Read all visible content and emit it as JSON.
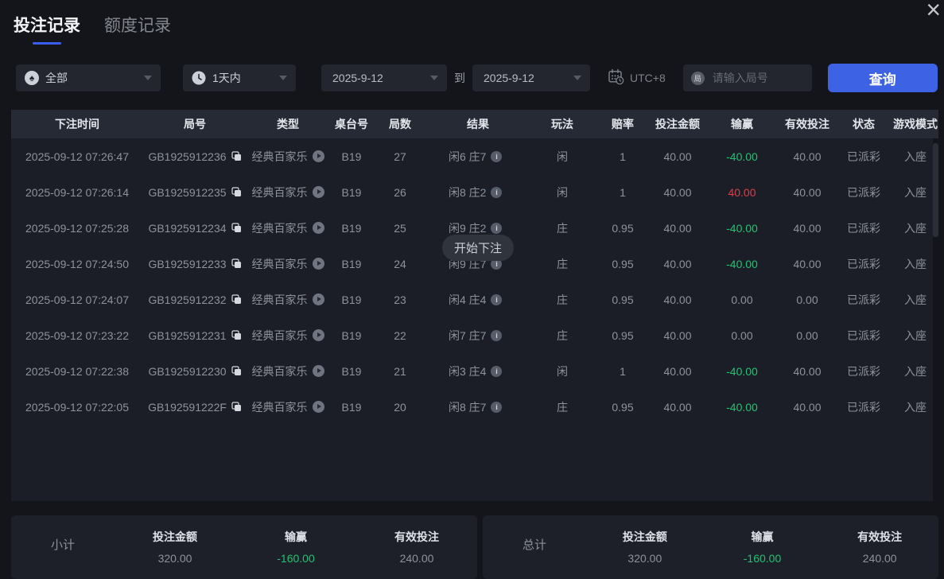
{
  "tabs": [
    {
      "label": "投注记录",
      "active": true
    },
    {
      "label": "额度记录",
      "active": false
    }
  ],
  "close_glyph": "×",
  "filters": {
    "game_select": {
      "value": "全部",
      "icon": "spade"
    },
    "time_select": {
      "value": "1天内",
      "icon": "clock"
    },
    "date_from": "2025-9-12",
    "to_label": "到",
    "date_to": "2025-9-12",
    "timezone_label": "UTC+8",
    "round_icon_text": "局",
    "round_input_placeholder": "请输入局号",
    "query_button": "查询"
  },
  "toast": "开始下注",
  "table": {
    "headers": [
      "下注时间",
      "局号",
      "类型",
      "桌台号",
      "局数",
      "结果",
      "玩法",
      "赔率",
      "投注金额",
      "输赢",
      "有效投注",
      "状态",
      "游戏模式"
    ],
    "rows": [
      {
        "time": "2025-09-12 07:26:47",
        "round": "GB1925912236",
        "type": "经典百家乐",
        "table_no": "B19",
        "game_no": "27",
        "result": "闲6 庄7",
        "play": "闲",
        "odds": "1",
        "bet": "40.00",
        "winloss": "-40.00",
        "winloss_color": "green",
        "valid": "40.00",
        "status": "已派彩",
        "mode": "入座"
      },
      {
        "time": "2025-09-12 07:26:14",
        "round": "GB1925912235",
        "type": "经典百家乐",
        "table_no": "B19",
        "game_no": "26",
        "result": "闲8 庄2",
        "play": "闲",
        "odds": "1",
        "bet": "40.00",
        "winloss": "40.00",
        "winloss_color": "red",
        "valid": "40.00",
        "status": "已派彩",
        "mode": "入座"
      },
      {
        "time": "2025-09-12 07:25:28",
        "round": "GB1925912234",
        "type": "经典百家乐",
        "table_no": "B19",
        "game_no": "25",
        "result": "闲9 庄2",
        "play": "庄",
        "odds": "0.95",
        "bet": "40.00",
        "winloss": "-40.00",
        "winloss_color": "green",
        "valid": "40.00",
        "status": "已派彩",
        "mode": "入座"
      },
      {
        "time": "2025-09-12 07:24:50",
        "round": "GB1925912233",
        "type": "经典百家乐",
        "table_no": "B19",
        "game_no": "24",
        "result": "闲9 庄7",
        "play": "庄",
        "odds": "0.95",
        "bet": "40.00",
        "winloss": "-40.00",
        "winloss_color": "green",
        "valid": "40.00",
        "status": "已派彩",
        "mode": "入座"
      },
      {
        "time": "2025-09-12 07:24:07",
        "round": "GB1925912232",
        "type": "经典百家乐",
        "table_no": "B19",
        "game_no": "23",
        "result": "闲4 庄4",
        "play": "庄",
        "odds": "0.95",
        "bet": "40.00",
        "winloss": "0.00",
        "winloss_color": "plain",
        "valid": "0.00",
        "status": "已派彩",
        "mode": "入座"
      },
      {
        "time": "2025-09-12 07:23:22",
        "round": "GB1925912231",
        "type": "经典百家乐",
        "table_no": "B19",
        "game_no": "22",
        "result": "闲7 庄7",
        "play": "庄",
        "odds": "0.95",
        "bet": "40.00",
        "winloss": "0.00",
        "winloss_color": "plain",
        "valid": "0.00",
        "status": "已派彩",
        "mode": "入座"
      },
      {
        "time": "2025-09-12 07:22:38",
        "round": "GB1925912230",
        "type": "经典百家乐",
        "table_no": "B19",
        "game_no": "21",
        "result": "闲3 庄4",
        "play": "闲",
        "odds": "1",
        "bet": "40.00",
        "winloss": "-40.00",
        "winloss_color": "green",
        "valid": "40.00",
        "status": "已派彩",
        "mode": "入座"
      },
      {
        "time": "2025-09-12 07:22:05",
        "round": "GB192591222F",
        "type": "经典百家乐",
        "table_no": "B19",
        "game_no": "20",
        "result": "闲8 庄7",
        "play": "庄",
        "odds": "0.95",
        "bet": "40.00",
        "winloss": "-40.00",
        "winloss_color": "green",
        "valid": "40.00",
        "status": "已派彩",
        "mode": "入座"
      }
    ]
  },
  "summary": {
    "subtotal": {
      "label": "小计",
      "items": [
        {
          "label": "投注金额",
          "value": "320.00",
          "color": "plain"
        },
        {
          "label": "输赢",
          "value": "-160.00",
          "color": "green"
        },
        {
          "label": "有效投注",
          "value": "240.00",
          "color": "plain"
        }
      ]
    },
    "total": {
      "label": "总计",
      "items": [
        {
          "label": "投注金额",
          "value": "320.00",
          "color": "plain"
        },
        {
          "label": "输赢",
          "value": "-160.00",
          "color": "green"
        },
        {
          "label": "有效投注",
          "value": "240.00",
          "color": "plain"
        }
      ]
    }
  },
  "colors": {
    "accent_blue": "#3d63e4",
    "loss_green": "#1ec473",
    "win_red": "#d8414d",
    "background": "#14151a",
    "table_background": "#1b1e26",
    "header_background": "#262a34"
  }
}
